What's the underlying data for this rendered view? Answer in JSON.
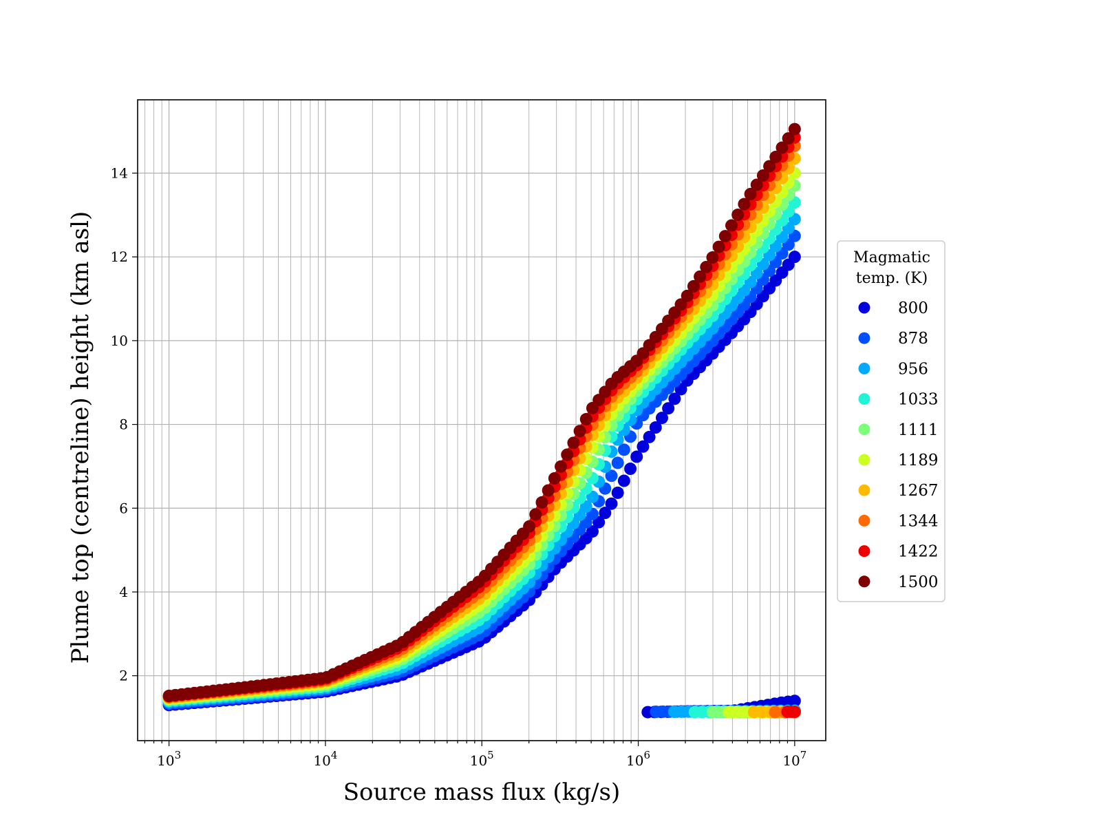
{
  "chart_data": {
    "type": "scatter",
    "xscale": "log",
    "xlim": [
      630,
      15800000
    ],
    "ylim": [
      0.45,
      15.75
    ],
    "grid": true,
    "grid_minor_x": true,
    "xlabel": "Source mass flux (kg/s)",
    "ylabel": "Plume top (centreline) height (km asl)",
    "xticks": [
      {
        "value": 1000,
        "base": "10",
        "exp": "3"
      },
      {
        "value": 10000,
        "base": "10",
        "exp": "4"
      },
      {
        "value": 100000,
        "base": "10",
        "exp": "5"
      },
      {
        "value": 1000000,
        "base": "10",
        "exp": "6"
      },
      {
        "value": 10000000,
        "base": "10",
        "exp": "7"
      }
    ],
    "yticks": [
      {
        "value": 2,
        "label": "2"
      },
      {
        "value": 4,
        "label": "4"
      },
      {
        "value": 6,
        "label": "6"
      },
      {
        "value": 8,
        "label": "8"
      },
      {
        "value": 10,
        "label": "10"
      },
      {
        "value": 12,
        "label": "12"
      },
      {
        "value": 14,
        "label": "14"
      }
    ],
    "legend": {
      "title_lines": [
        "Magmatic",
        "temp. (K)"
      ],
      "placement": "outside right"
    },
    "series": [
      {
        "name": "800",
        "color": "#0000dd",
        "x": [
          1000,
          3000,
          10000,
          30000,
          100000,
          200000,
          300000,
          500000,
          700000,
          1000000,
          2000000,
          3000000,
          5000000,
          10000000
        ],
        "y": [
          1.3,
          1.45,
          1.62,
          2.0,
          2.85,
          3.8,
          4.6,
          5.4,
          6.2,
          7.3,
          9.0,
          9.7,
          10.6,
          12.0
        ],
        "low_x": [
          1150000,
          2000000,
          4000000,
          8000000,
          10000000
        ],
        "low_y": [
          1.13,
          1.15,
          1.16,
          1.35,
          1.4
        ]
      },
      {
        "name": "878",
        "color": "#0050ff",
        "x": [
          1000,
          3000,
          10000,
          30000,
          100000,
          200000,
          300000,
          500000,
          700000,
          1000000,
          2000000,
          3000000,
          5000000,
          10000000
        ],
        "y": [
          1.33,
          1.48,
          1.66,
          2.08,
          3.0,
          4.0,
          4.85,
          5.8,
          6.9,
          8.1,
          9.3,
          10.0,
          10.95,
          12.5
        ],
        "low_x": [
          1300000,
          2500000,
          5000000,
          10000000
        ],
        "low_y": [
          1.14,
          1.15,
          1.16,
          1.17
        ]
      },
      {
        "name": "956",
        "color": "#00aaff",
        "x": [
          1000,
          3000,
          10000,
          30000,
          100000,
          200000,
          300000,
          500000,
          700000,
          1000000,
          2000000,
          3000000,
          5000000,
          10000000
        ],
        "y": [
          1.37,
          1.52,
          1.7,
          2.17,
          3.18,
          4.22,
          5.1,
          6.2,
          7.5,
          8.4,
          9.6,
          10.3,
          11.3,
          12.9
        ],
        "low_x": [
          1700000,
          2800000,
          5500000,
          10000000
        ],
        "low_y": [
          1.14,
          1.15,
          1.15,
          1.16
        ]
      },
      {
        "name": "1033",
        "color": "#22f5d5",
        "x": [
          1000,
          3000,
          10000,
          30000,
          100000,
          200000,
          300000,
          500000,
          700000,
          1000000,
          2000000,
          3000000,
          5000000,
          10000000
        ],
        "y": [
          1.4,
          1.56,
          1.74,
          2.27,
          3.37,
          4.45,
          5.4,
          6.65,
          7.85,
          8.65,
          9.9,
          10.6,
          11.7,
          13.3
        ],
        "low_x": [
          2300000,
          3500000,
          6000000,
          10000000
        ],
        "low_y": [
          1.13,
          1.14,
          1.14,
          1.15
        ]
      },
      {
        "name": "1111",
        "color": "#7dff7a",
        "x": [
          1000,
          3000,
          10000,
          30000,
          100000,
          200000,
          300000,
          500000,
          700000,
          1000000,
          2000000,
          3000000,
          5000000,
          10000000
        ],
        "y": [
          1.43,
          1.59,
          1.78,
          2.36,
          3.55,
          4.65,
          5.65,
          7.05,
          8.1,
          8.85,
          10.1,
          10.85,
          12.0,
          13.7
        ],
        "low_x": [
          3000000,
          4500000,
          7000000,
          10000000
        ],
        "low_y": [
          1.13,
          1.13,
          1.14,
          1.14
        ]
      },
      {
        "name": "1189",
        "color": "#ccff22",
        "x": [
          1000,
          3000,
          10000,
          30000,
          100000,
          200000,
          300000,
          500000,
          700000,
          1000000,
          2000000,
          3000000,
          5000000,
          10000000
        ],
        "y": [
          1.45,
          1.62,
          1.82,
          2.44,
          3.72,
          4.85,
          5.9,
          7.4,
          8.35,
          9.0,
          10.3,
          11.1,
          12.3,
          14.0
        ],
        "low_x": [
          3800000,
          5500000,
          8000000,
          10000000
        ],
        "low_y": [
          1.13,
          1.13,
          1.13,
          1.14
        ]
      },
      {
        "name": "1267",
        "color": "#ffbb00",
        "x": [
          1000,
          3000,
          10000,
          30000,
          100000,
          200000,
          300000,
          500000,
          700000,
          1000000,
          2000000,
          3000000,
          5000000,
          10000000
        ],
        "y": [
          1.47,
          1.65,
          1.86,
          2.52,
          3.88,
          5.05,
          6.15,
          7.7,
          8.55,
          9.15,
          10.5,
          11.35,
          12.6,
          14.35
        ],
        "low_x": [
          5500000,
          7500000,
          10000000
        ],
        "low_y": [
          1.13,
          1.13,
          1.13
        ]
      },
      {
        "name": "1344",
        "color": "#ff6a00",
        "x": [
          1000,
          3000,
          10000,
          30000,
          100000,
          200000,
          300000,
          500000,
          700000,
          1000000,
          2000000,
          3000000,
          5000000,
          10000000
        ],
        "y": [
          1.49,
          1.68,
          1.89,
          2.6,
          4.03,
          5.22,
          6.38,
          7.95,
          8.75,
          9.3,
          10.7,
          11.6,
          12.9,
          14.65
        ],
        "low_x": [
          7500000,
          9000000,
          10000000
        ],
        "low_y": [
          1.13,
          1.13,
          1.13
        ]
      },
      {
        "name": "1422",
        "color": "#ee0000",
        "x": [
          1000,
          3000,
          10000,
          30000,
          100000,
          200000,
          300000,
          500000,
          700000,
          1000000,
          2000000,
          3000000,
          5000000,
          10000000
        ],
        "y": [
          1.51,
          1.7,
          1.92,
          2.68,
          4.17,
          5.4,
          6.6,
          8.15,
          8.9,
          9.45,
          10.85,
          11.8,
          13.15,
          14.85
        ],
        "low_x": [
          9000000,
          10000000
        ],
        "low_y": [
          1.14,
          1.14
        ]
      },
      {
        "name": "1500",
        "color": "#7f0000",
        "x": [
          1000,
          3000,
          10000,
          30000,
          100000,
          200000,
          300000,
          500000,
          700000,
          1000000,
          2000000,
          3000000,
          5000000,
          10000000
        ],
        "y": [
          1.52,
          1.72,
          1.95,
          2.75,
          4.3,
          5.55,
          6.8,
          8.35,
          9.05,
          9.55,
          11.0,
          12.0,
          13.4,
          15.05
        ],
        "low_x": [],
        "low_y": []
      }
    ]
  }
}
